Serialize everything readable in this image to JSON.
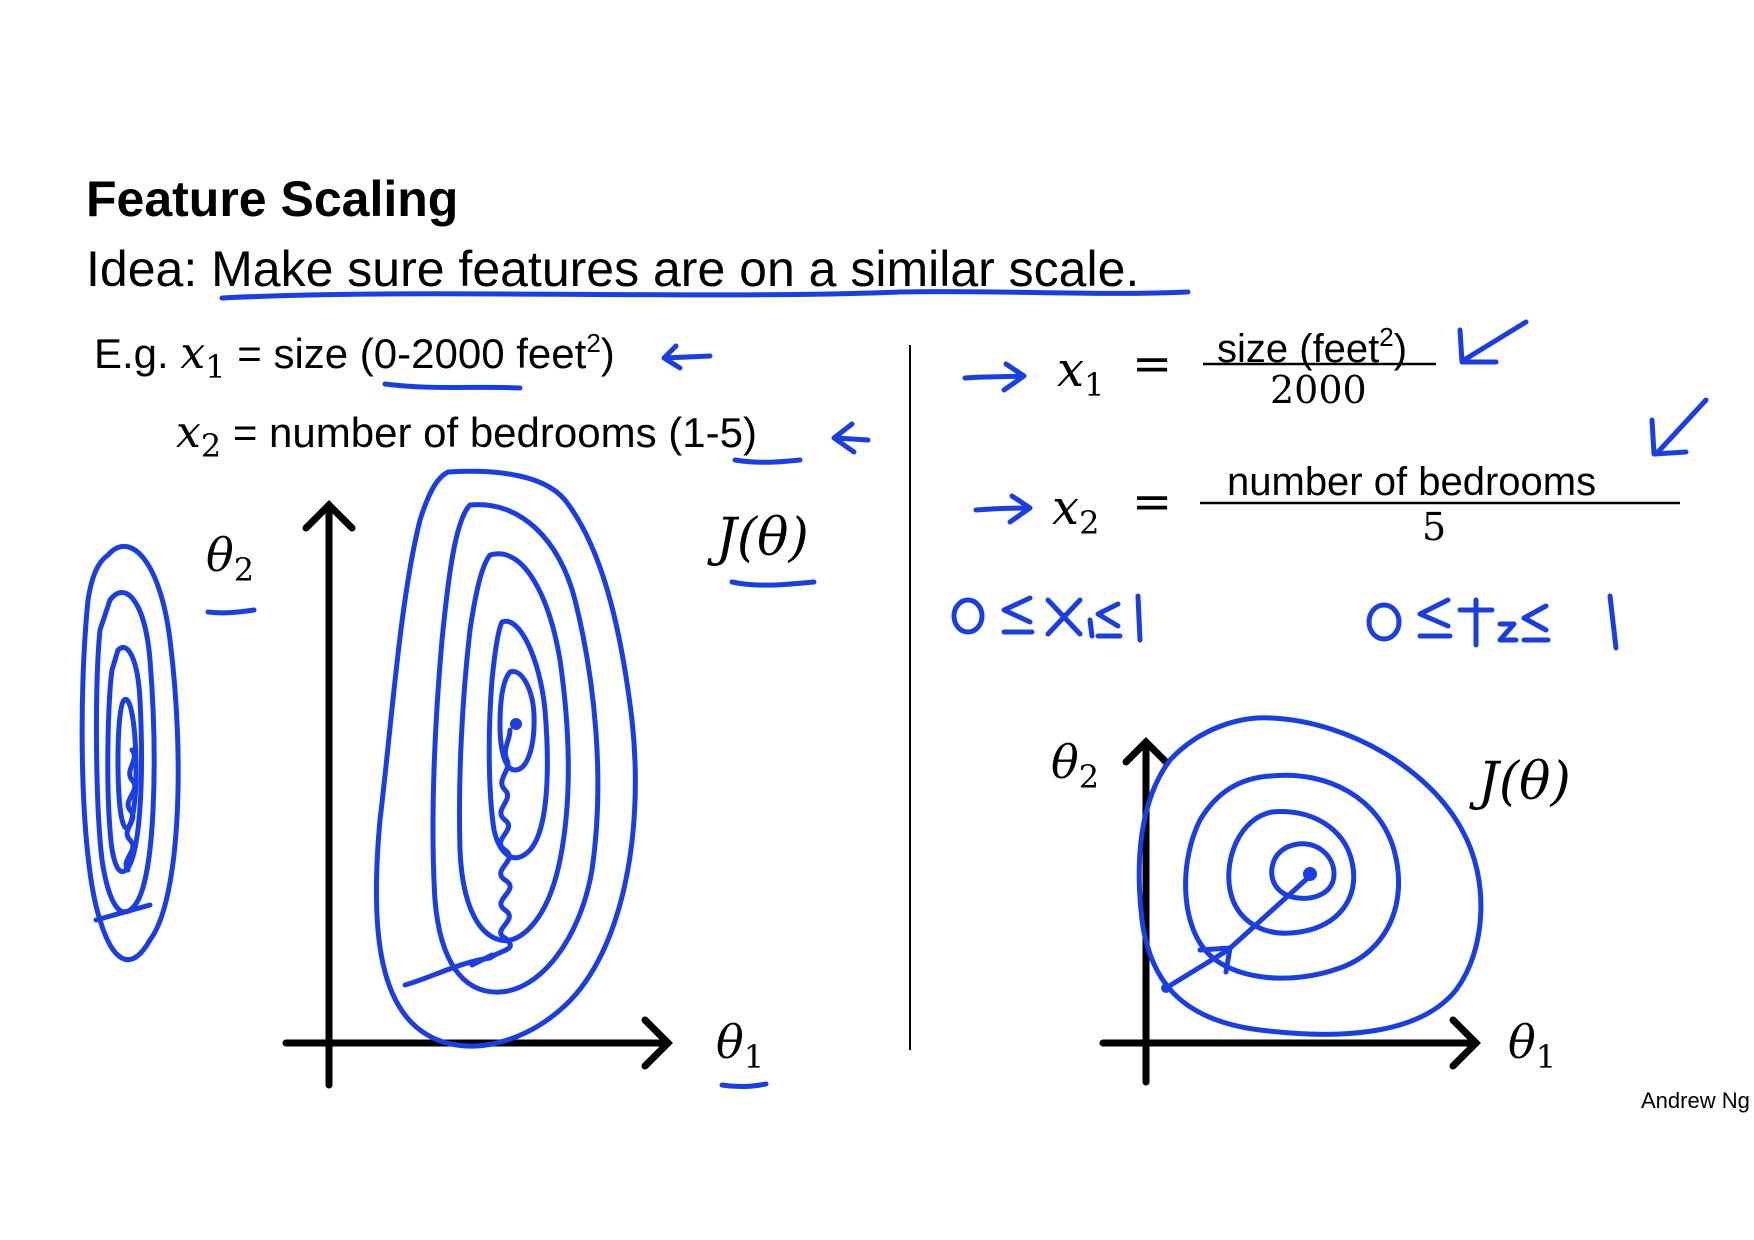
{
  "title": "Feature Scaling",
  "idea": {
    "prefix": "Idea: ",
    "text": "Make sure features are on a similar scale",
    "suffix": "."
  },
  "example": {
    "eg_label": "E.g.",
    "x1_var": "x",
    "x1_sub": "1",
    "x1_desc_pre": " = size (",
    "x1_range": "0-2000",
    "x1_desc_mid": " feet",
    "x1_sup": "2",
    "x1_desc_post": ")",
    "x2_var": "x",
    "x2_sub": "2",
    "x2_desc_pre": " = number of bedrooms (",
    "x2_range": "1-5",
    "x2_desc_post": ")"
  },
  "left_plot": {
    "y_label": "θ",
    "y_sub": "2",
    "x_label": "θ",
    "x_sub": "1",
    "cost_label": "J(θ)"
  },
  "right_side": {
    "x1_var": "x",
    "x1_sub": "1",
    "x1_eq": "=",
    "x1_num": "size (feet",
    "x1_num_sup": "2",
    "x1_num_post": ")",
    "x1_den": "2000",
    "x2_var": "x",
    "x2_sub": "2",
    "x2_eq": "=",
    "x2_num": "number of bedrooms",
    "x2_den": "5"
  },
  "right_plot": {
    "y_label": "θ",
    "y_sub": "2",
    "x_label": "θ",
    "x_sub": "1",
    "cost_label": "J(θ)"
  },
  "author": "Andrew Ng",
  "colors": {
    "ink": "#1a3ee6",
    "text": "#000000"
  }
}
